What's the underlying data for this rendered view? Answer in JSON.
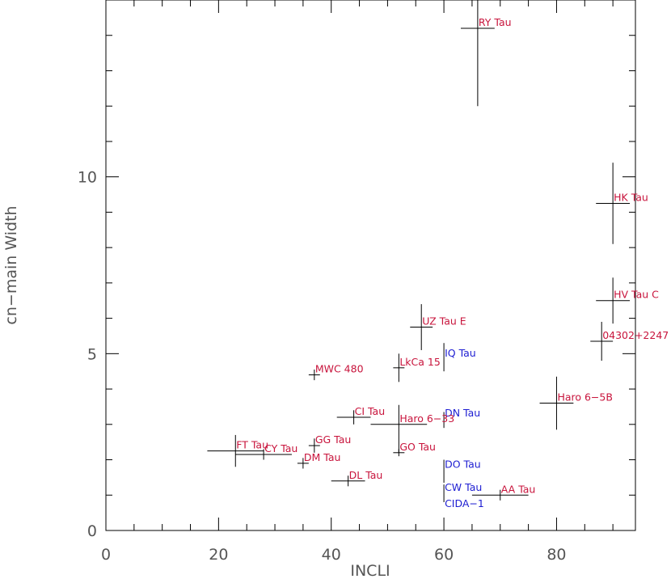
{
  "chart_data": {
    "type": "scatter",
    "title": "",
    "xlabel": "INCLI",
    "ylabel": "cn−main Width",
    "xlim": [
      0,
      94
    ],
    "ylim": [
      0,
      15
    ],
    "x_ticks": [
      "0",
      "20",
      "40",
      "60",
      "80"
    ],
    "y_ticks": [
      "0",
      "5",
      "10"
    ],
    "grid": false,
    "legend": "none",
    "colors": {
      "red_label": "#c8143c",
      "blue_label": "#1e1ed2",
      "marker": "#000000",
      "axis": "#000000"
    },
    "points": [
      {
        "label": "RY Tau",
        "x": 66,
        "y": 14.2,
        "xerr": 3,
        "yerr_lo": 2.2,
        "yerr_hi": 0.8,
        "color": "red"
      },
      {
        "label": "HK Tau",
        "x": 90,
        "y": 9.25,
        "xerr": 3,
        "yerr_lo": 1.15,
        "yerr_hi": 1.15,
        "color": "red"
      },
      {
        "label": "HV Tau C",
        "x": 90,
        "y": 6.5,
        "xerr": 3,
        "yerr_lo": 0.65,
        "yerr_hi": 0.65,
        "color": "red"
      },
      {
        "label": "04302+2247",
        "x": 88,
        "y": 5.35,
        "xerr": 2,
        "yerr_lo": 0.55,
        "yerr_hi": 0.55,
        "color": "red"
      },
      {
        "label": "UZ Tau E",
        "x": 56,
        "y": 5.75,
        "xerr": 2,
        "yerr_lo": 0.65,
        "yerr_hi": 0.65,
        "color": "red"
      },
      {
        "label": "IQ Tau",
        "x": 60,
        "y": 4.85,
        "xerr": 0,
        "yerr_lo": 0.35,
        "yerr_hi": 0.45,
        "color": "blue"
      },
      {
        "label": "LkCa 15",
        "x": 52,
        "y": 4.6,
        "xerr": 1,
        "yerr_lo": 0.4,
        "yerr_hi": 0.4,
        "color": "red"
      },
      {
        "label": "MWC 480",
        "x": 37,
        "y": 4.4,
        "xerr": 1,
        "yerr_lo": 0.15,
        "yerr_hi": 0.15,
        "color": "red"
      },
      {
        "label": "Haro 6−5B",
        "x": 80,
        "y": 3.6,
        "xerr": 3,
        "yerr_lo": 0.75,
        "yerr_hi": 0.75,
        "color": "red"
      },
      {
        "label": "DN Tau",
        "x": 60,
        "y": 3.15,
        "xerr": 0,
        "yerr_lo": 0.25,
        "yerr_hi": 0.2,
        "color": "blue"
      },
      {
        "label": "CI Tau",
        "x": 44,
        "y": 3.2,
        "xerr": 3,
        "yerr_lo": 0.2,
        "yerr_hi": 0.2,
        "color": "red"
      },
      {
        "label": "Haro 6−33",
        "x": 52,
        "y": 3.0,
        "xerr": 5,
        "yerr_lo": 0.8,
        "yerr_hi": 0.55,
        "color": "red"
      },
      {
        "label": "GG Tau",
        "x": 37,
        "y": 2.4,
        "xerr": 1,
        "yerr_lo": 0.2,
        "yerr_hi": 0.2,
        "color": "red"
      },
      {
        "label": "GO Tau",
        "x": 52,
        "y": 2.2,
        "xerr": 1,
        "yerr_lo": 0.1,
        "yerr_hi": 0.1,
        "color": "red"
      },
      {
        "label": "FT Tau",
        "x": 23,
        "y": 2.25,
        "xerr": 5,
        "yerr_lo": 0.45,
        "yerr_hi": 0.45,
        "color": "red"
      },
      {
        "label": "CY Tau",
        "x": 28,
        "y": 2.15,
        "xerr": 5,
        "yerr_lo": 0.15,
        "yerr_hi": 0.15,
        "color": "red"
      },
      {
        "label": "DM Tau",
        "x": 35,
        "y": 1.9,
        "xerr": 1,
        "yerr_lo": 0.15,
        "yerr_hi": 0.15,
        "color": "red"
      },
      {
        "label": "DL Tau",
        "x": 43,
        "y": 1.4,
        "xerr": 3,
        "yerr_lo": 0.15,
        "yerr_hi": 0.15,
        "color": "red"
      },
      {
        "label": "DO Tau",
        "x": 60,
        "y": 1.7,
        "xerr": 0,
        "yerr_lo": 0.35,
        "yerr_hi": 0.3,
        "color": "blue"
      },
      {
        "label": "AA Tau",
        "x": 70,
        "y": 1.0,
        "xerr": 5,
        "yerr_lo": 0.15,
        "yerr_hi": 0.15,
        "color": "red"
      },
      {
        "label": "CW Tau",
        "x": 60,
        "y": 1.05,
        "xerr": 0,
        "yerr_lo": 0.25,
        "yerr_hi": 0.25,
        "color": "blue"
      },
      {
        "label": "CIDA−1",
        "x": 60,
        "y": 0.6,
        "xerr": 0,
        "yerr_lo": 0,
        "yerr_hi": 0,
        "color": "blue",
        "label_only": true
      }
    ]
  }
}
